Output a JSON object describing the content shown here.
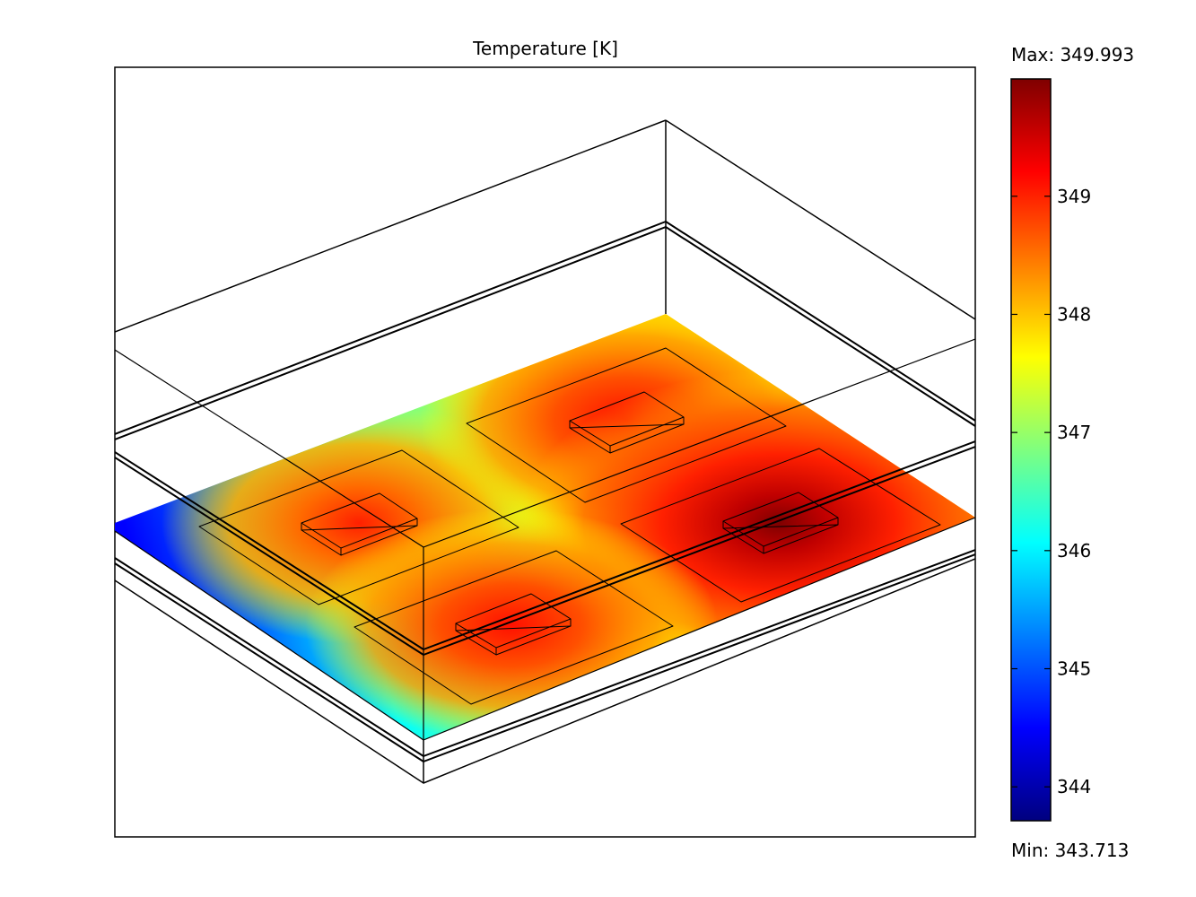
{
  "chart_data": {
    "type": "heatmap",
    "title": "Temperature [K]",
    "colorbar": {
      "max_label": "Max: 349.993",
      "min_label": "Min: 343.713",
      "max": 349.993,
      "min": 343.713,
      "ticks": [
        344,
        345,
        346,
        347,
        348,
        349
      ],
      "tick_labels": [
        "344",
        "345",
        "346",
        "347",
        "348",
        "349"
      ],
      "colormap": "jet",
      "placement": "right"
    },
    "heat_sources": [
      {
        "name": "front-left chip",
        "peak": 348.7
      },
      {
        "name": "back chip",
        "peak": 349.1
      },
      {
        "name": "right chip",
        "peak": 349.99
      },
      {
        "name": "front chip",
        "peak": 349.2
      }
    ]
  },
  "colors": {
    "jet": [
      "#00007f",
      "#0000ff",
      "#007fff",
      "#00ffff",
      "#7fff7f",
      "#ffff00",
      "#ff7f00",
      "#ff0000",
      "#7f0000"
    ]
  }
}
